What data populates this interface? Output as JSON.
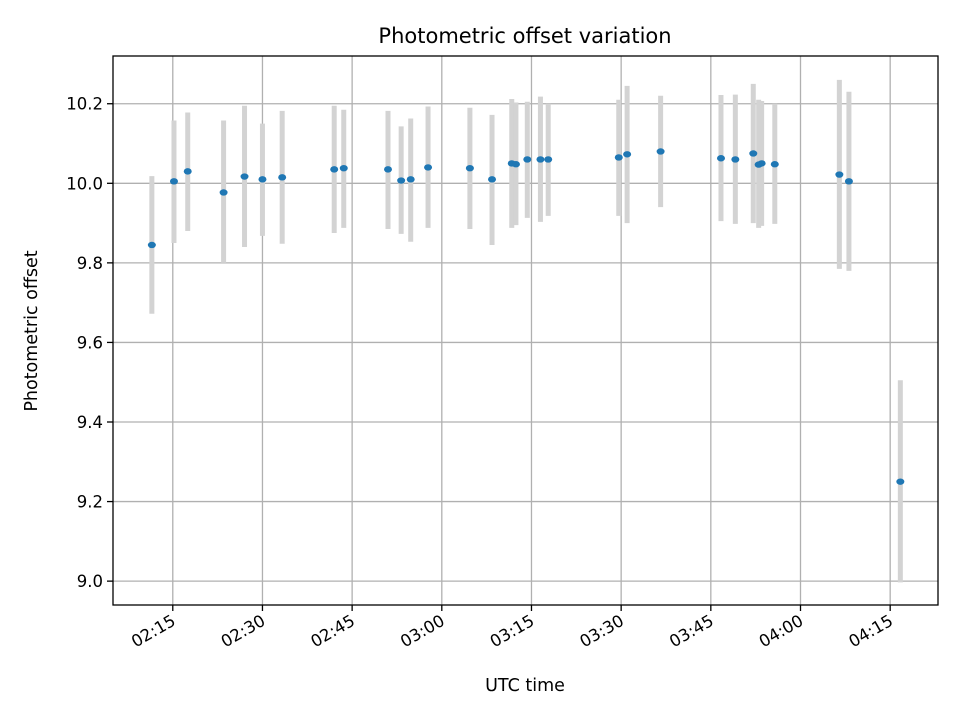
{
  "chart_data": {
    "type": "scatter",
    "title": "Photometric offset variation",
    "xlabel": "UTC time",
    "ylabel": "Photometric offset",
    "xlim": [
      "02:05",
      "04:23"
    ],
    "ylim": [
      8.94,
      10.32
    ],
    "grid": true,
    "legend": null,
    "x_ticks": [
      "02:15",
      "02:30",
      "02:45",
      "03:00",
      "03:15",
      "03:30",
      "03:45",
      "04:00",
      "04:15"
    ],
    "y_ticks": [
      "9.0",
      "9.2",
      "9.4",
      "9.6",
      "9.8",
      "10.0",
      "10.2"
    ],
    "colors": {
      "point": "#1f77b4",
      "errorbar": "#d3d3d3",
      "grid": "#b0b0b0"
    },
    "series": [
      {
        "marker": "point",
        "points": [
          {
            "x": "02:11.5",
            "y": 9.845,
            "ylow": 9.672,
            "yhigh": 10.018
          },
          {
            "x": "02:15.2",
            "y": 10.005,
            "ylow": 9.85,
            "yhigh": 10.158
          },
          {
            "x": "02:17.5",
            "y": 10.03,
            "ylow": 9.88,
            "yhigh": 10.178
          },
          {
            "x": "02:23.5",
            "y": 9.977,
            "ylow": 9.8,
            "yhigh": 10.158
          },
          {
            "x": "02:27.0",
            "y": 10.017,
            "ylow": 9.84,
            "yhigh": 10.195
          },
          {
            "x": "02:30.0",
            "y": 10.01,
            "ylow": 9.868,
            "yhigh": 10.15
          },
          {
            "x": "02:33.3",
            "y": 10.015,
            "ylow": 9.848,
            "yhigh": 10.182
          },
          {
            "x": "02:42.0",
            "y": 10.035,
            "ylow": 9.875,
            "yhigh": 10.195
          },
          {
            "x": "02:43.6",
            "y": 10.038,
            "ylow": 9.888,
            "yhigh": 10.185
          },
          {
            "x": "02:51.0",
            "y": 10.035,
            "ylow": 9.885,
            "yhigh": 10.182
          },
          {
            "x": "02:53.2",
            "y": 10.007,
            "ylow": 9.873,
            "yhigh": 10.143
          },
          {
            "x": "02:54.8",
            "y": 10.01,
            "ylow": 9.853,
            "yhigh": 10.163
          },
          {
            "x": "02:57.7",
            "y": 10.04,
            "ylow": 9.888,
            "yhigh": 10.193
          },
          {
            "x": "03:04.7",
            "y": 10.038,
            "ylow": 9.885,
            "yhigh": 10.19
          },
          {
            "x": "03:08.4",
            "y": 10.01,
            "ylow": 9.845,
            "yhigh": 10.172
          },
          {
            "x": "03:11.7",
            "y": 10.05,
            "ylow": 9.888,
            "yhigh": 10.212
          },
          {
            "x": "03:12.4",
            "y": 10.048,
            "ylow": 9.895,
            "yhigh": 10.203
          },
          {
            "x": "03:14.3",
            "y": 10.06,
            "ylow": 9.913,
            "yhigh": 10.205
          },
          {
            "x": "03:16.5",
            "y": 10.06,
            "ylow": 9.903,
            "yhigh": 10.218
          },
          {
            "x": "03:17.8",
            "y": 10.06,
            "ylow": 9.918,
            "yhigh": 10.2
          },
          {
            "x": "03:29.6",
            "y": 10.065,
            "ylow": 9.918,
            "yhigh": 10.21
          },
          {
            "x": "03:31.0",
            "y": 10.073,
            "ylow": 9.9,
            "yhigh": 10.245
          },
          {
            "x": "03:36.6",
            "y": 10.08,
            "ylow": 9.94,
            "yhigh": 10.22
          },
          {
            "x": "03:46.7",
            "y": 10.063,
            "ylow": 9.905,
            "yhigh": 10.222
          },
          {
            "x": "03:49.1",
            "y": 10.06,
            "ylow": 9.898,
            "yhigh": 10.223
          },
          {
            "x": "03:52.1",
            "y": 10.075,
            "ylow": 9.9,
            "yhigh": 10.25
          },
          {
            "x": "03:53.0",
            "y": 10.047,
            "ylow": 9.888,
            "yhigh": 10.21
          },
          {
            "x": "03:53.5",
            "y": 10.05,
            "ylow": 9.893,
            "yhigh": 10.207
          },
          {
            "x": "03:55.7",
            "y": 10.048,
            "ylow": 9.898,
            "yhigh": 10.2
          },
          {
            "x": "04:06.5",
            "y": 10.022,
            "ylow": 9.785,
            "yhigh": 10.26
          },
          {
            "x": "04:08.1",
            "y": 10.005,
            "ylow": 9.78,
            "yhigh": 10.23
          },
          {
            "x": "04:16.7",
            "y": 9.25,
            "ylow": 8.997,
            "yhigh": 9.505
          }
        ]
      }
    ]
  }
}
